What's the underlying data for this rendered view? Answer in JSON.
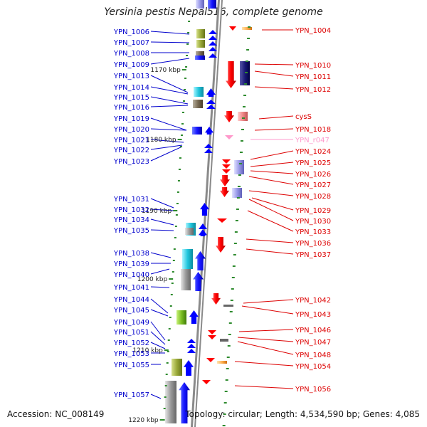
{
  "title": "Yersinia pestis Nepal516, complete genome",
  "footer": {
    "accession": "Accession: NC_008149",
    "topology": "Topology: circular; Length: 4,534,590 bp; Genes: 4,085"
  },
  "colors": {
    "left_label": "#0000cc",
    "right_label": "#dd0000",
    "pseudo_label": "#ff99cc",
    "axis": "#8a8a8a",
    "tick": "#2e8b2e"
  },
  "ticks": [
    "1170 kbp",
    "1180 kbp",
    "1190 kbp",
    "1200 kbp",
    "1210 kbp",
    "1220 kbp"
  ],
  "left_labels": [
    "YPN_1006",
    "YPN_1007",
    "YPN_1008",
    "YPN_1009",
    "YPN_1013",
    "YPN_1014",
    "YPN_1015",
    "YPN_1016",
    "YPN_1019",
    "YPN_1020",
    "YPN_1021",
    "YPN_1022",
    "YPN_1023",
    "YPN_1031",
    "YPN_1032",
    "YPN_1034",
    "YPN_1035",
    "YPN_1038",
    "YPN_1039",
    "YPN_1040",
    "YPN_1041",
    "YPN_1044",
    "YPN_1045",
    "YPN_1049",
    "YPN_1051",
    "YPN_1052",
    "YPN_1053",
    "YPN_1055",
    "YPN_1057"
  ],
  "right_labels": [
    "YPN_1004",
    "YPN_1010",
    "YPN_1011",
    "YPN_1012",
    "cysS",
    "YPN_1018",
    "YPN_r047",
    "YPN_1024",
    "YPN_1025",
    "YPN_1026",
    "YPN_1027",
    "YPN_1028",
    "YPN_1029",
    "YPN_1030",
    "YPN_1033",
    "YPN_1036",
    "YPN_1037",
    "YPN_1042",
    "YPN_1043",
    "YPN_1046",
    "YPN_1047",
    "YPN_1048",
    "YPN_1054",
    "YPN_1056"
  ]
}
